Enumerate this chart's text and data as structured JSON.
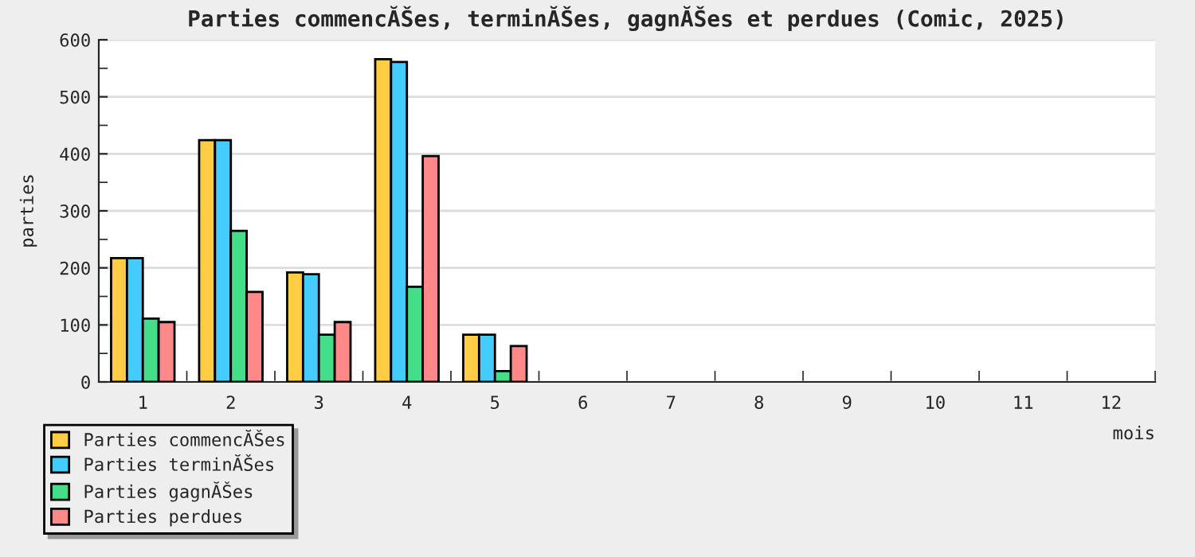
{
  "chart_data": {
    "type": "bar",
    "title": "Parties commencĂŠes, terminĂŠes, gagnĂŠes et perdues (Comic, 2025)",
    "xlabel": "mois",
    "ylabel": "parties",
    "categories": [
      "1",
      "2",
      "3",
      "4",
      "5",
      "6",
      "7",
      "8",
      "9",
      "10",
      "11",
      "12"
    ],
    "series": [
      {
        "name": "Parties commencĂŠes",
        "color": "#ffcc44",
        "values": [
          217,
          424,
          192,
          566,
          83,
          null,
          null,
          null,
          null,
          null,
          null,
          null
        ]
      },
      {
        "name": "Parties terminĂŠes",
        "color": "#44ccff",
        "values": [
          217,
          424,
          189,
          561,
          83,
          null,
          null,
          null,
          null,
          null,
          null,
          null
        ]
      },
      {
        "name": "Parties gagnĂŠes",
        "color": "#44dd88",
        "values": [
          111,
          265,
          83,
          167,
          19,
          null,
          null,
          null,
          null,
          null,
          null,
          null
        ]
      },
      {
        "name": "Parties perdues",
        "color": "#ff8888",
        "values": [
          105,
          158,
          105,
          396,
          63,
          null,
          null,
          null,
          null,
          null,
          null,
          null
        ]
      }
    ],
    "ylim": [
      0,
      600
    ],
    "yticks": [
      0,
      100,
      200,
      300,
      400,
      500,
      600
    ],
    "grid": "y",
    "legend": "bottom left"
  }
}
